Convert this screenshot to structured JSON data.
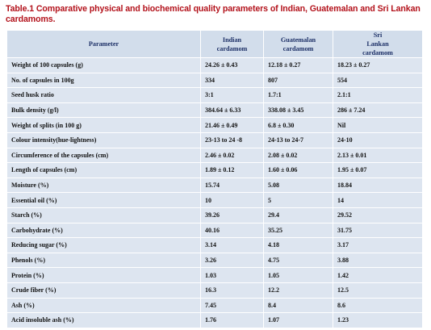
{
  "title": "Table.1 Comparative physical and biochemical quality parameters of Indian, Guatemalan and Sri Lankan cardamoms.",
  "table": {
    "header": [
      "Parameter",
      "Indian cardamom",
      "Guatemalan cardamom",
      "Sri Lankan cardamom"
    ],
    "rows": [
      [
        "Weight of 100 capsules (g)",
        "24.26 ± 0.43",
        "12.18 ± 0.27",
        "18.23 ± 0.27"
      ],
      [
        "No. of capsules in 100g",
        "334",
        "807",
        "554"
      ],
      [
        "Seed husk ratio",
        "3:1",
        "1.7:1",
        "2.1:1"
      ],
      [
        "Bulk density (g/l)",
        "384.64 ± 6.33",
        "338.08 ± 3.45",
        "286 ± 7.24"
      ],
      [
        "Weight of splits (in 100 g)",
        "21.46 ± 0.49",
        "6.8 ± 0.30",
        "Nil"
      ],
      [
        "Colour intensity(hue-lightness)",
        "23-13 to 24 -8",
        "24-13 to 24-7",
        "24-10"
      ],
      [
        "Circumference of the capsules (cm)",
        "2.46 ± 0.02",
        "2.08 ± 0.02",
        "2.13 ± 0.01"
      ],
      [
        "Length of capsules (cm)",
        "1.89 ± 0.12",
        "1.60 ± 0.06",
        "1.95 ± 0.07"
      ],
      [
        "Moisture (%)",
        "15.74",
        "5.08",
        "18.84"
      ],
      [
        "Essential oil (%)",
        "10",
        "5",
        "14"
      ],
      [
        "Starch (%)",
        "39.26",
        "29.4",
        "29.52"
      ],
      [
        "Carbohydrate (%)",
        "40.16",
        "35.25",
        "31.75"
      ],
      [
        "Reducing sugar (%)",
        "3.14",
        "4.18",
        "3.17"
      ],
      [
        "Phenols (%)",
        "3.26",
        "4.75",
        "3.88"
      ],
      [
        "Protein (%)",
        "1.03",
        "1.05",
        "1.42"
      ],
      [
        "Crude fiber (%)",
        "16.3",
        "12.2",
        "12.5"
      ],
      [
        "Ash (%)",
        "7.45",
        "8.4",
        "8.6"
      ],
      [
        "Acid insoluble ash (%)",
        "1.76",
        "1.07",
        "1.23"
      ]
    ]
  }
}
